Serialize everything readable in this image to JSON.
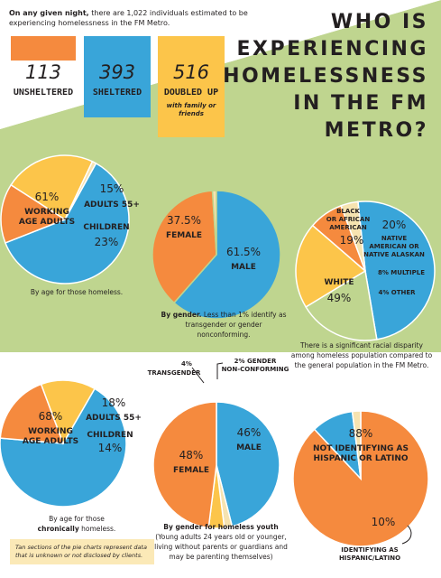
{
  "colors": {
    "orange": "#f58a3e",
    "blue": "#39a5d9",
    "yellow": "#fcc54a",
    "green": "#bfd58f",
    "tan": "#f6e3b0",
    "dark": "#231f20"
  },
  "intro": {
    "lead": "On any given night,",
    "rest": " there are 1,022 individuals estimated to be experiencing homelessness in the FM Metro."
  },
  "boxes": [
    {
      "value": "113",
      "label": "UNSHELTERED",
      "sub": ""
    },
    {
      "value": "393",
      "label": "SHELTERED",
      "sub": ""
    },
    {
      "value": "516",
      "label": "DOUBLED UP",
      "sub": "with family or friends"
    }
  ],
  "headline": [
    "WHO IS",
    "EXPERIENCING",
    "HOMELESSNESS",
    "IN THE FM",
    "METRO?"
  ],
  "captions": {
    "age": "By age for those homeless.",
    "gender_bold": "By gender.",
    "gender_rest": " Less than 1% identify as transgender or gender nonconforming.",
    "race": "There is a significant racial disparity among homeless population compared to the general population in the FM Metro.",
    "chronic_pre": "By age for those",
    "chronic_bold": "chronically",
    "chronic_post": "homeless.",
    "youth_bold": "By gender for homeless youth",
    "youth_rest": "(Young adults 24 years old or younger, living without parents or guardians and may be parenting themselves)",
    "note": "Tan sections of the pie charts represent data that is unknown or not disclosed by clients."
  },
  "chart_data": [
    {
      "type": "pie",
      "title": "",
      "caption": "By age for those homeless.",
      "slices": [
        {
          "label": "WORKING AGE ADULTS",
          "value": 61,
          "display": "61%",
          "color": "#39a5d9"
        },
        {
          "label": "ADULTS 55+",
          "value": 15,
          "display": "15%",
          "color": "#f58a3e"
        },
        {
          "label": "CHILDREN",
          "value": 23,
          "display": "23%",
          "color": "#fcc54a"
        },
        {
          "label": "",
          "value": 1,
          "display": "",
          "color": "#f6e3b0"
        }
      ]
    },
    {
      "type": "pie",
      "title": "",
      "caption": "By gender.",
      "slices": [
        {
          "label": "MALE",
          "value": 61.5,
          "display": "61.5%",
          "color": "#39a5d9"
        },
        {
          "label": "FEMALE",
          "value": 37.5,
          "display": "37.5%",
          "color": "#f58a3e"
        },
        {
          "label": "",
          "value": 1,
          "display": "",
          "color": "#f6e3b0"
        }
      ]
    },
    {
      "type": "pie",
      "title": "",
      "caption": "There is a significant racial disparity among homeless population compared to the general population in the FM Metro.",
      "slices": [
        {
          "label": "WHITE",
          "value": 49,
          "display": "49%",
          "color": "#39a5d9"
        },
        {
          "label": "BLACK OR AFRICAN AMERICAN",
          "value": 19,
          "display": "19%",
          "color": "#bfd58f"
        },
        {
          "label": "NATIVE AMERICAN OR NATIVE ALASKAN",
          "value": 20,
          "display": "20%",
          "color": "#fcc54a"
        },
        {
          "label": "MULTIPLE",
          "value": 8,
          "display": "8%",
          "color": "#f58a3e"
        },
        {
          "label": "OTHER",
          "value": 4,
          "display": "4%",
          "color": "#f6e3b0"
        }
      ]
    },
    {
      "type": "pie",
      "title": "",
      "caption": "By age for those chronically homeless.",
      "slices": [
        {
          "label": "WORKING AGE ADULTS",
          "value": 68,
          "display": "68%",
          "color": "#39a5d9"
        },
        {
          "label": "ADULTS 55+",
          "value": 18,
          "display": "18%",
          "color": "#f58a3e"
        },
        {
          "label": "CHILDREN",
          "value": 14,
          "display": "14%",
          "color": "#fcc54a"
        }
      ]
    },
    {
      "type": "pie",
      "title": "",
      "caption": "By gender for homeless youth",
      "slices": [
        {
          "label": "MALE",
          "value": 46,
          "display": "46%",
          "color": "#39a5d9"
        },
        {
          "label": "FEMALE",
          "value": 48,
          "display": "48%",
          "color": "#f58a3e"
        },
        {
          "label": "TRANSGENDER",
          "value": 4,
          "display": "4%",
          "color": "#fcc54a"
        },
        {
          "label": "GENDER NON-CONFORMING",
          "value": 2,
          "display": "2%",
          "color": "#f6e3b0"
        }
      ]
    },
    {
      "type": "pie",
      "title": "",
      "caption": "",
      "slices": [
        {
          "label": "NOT IDENTIFYING AS HISPANIC OR LATINO",
          "value": 88,
          "display": "88%",
          "color": "#f58a3e"
        },
        {
          "label": "IDENTIFYING AS HISPANIC/LATINO",
          "value": 10,
          "display": "10%",
          "color": "#39a5d9"
        },
        {
          "label": "",
          "value": 2,
          "display": "",
          "color": "#f6e3b0"
        }
      ]
    }
  ]
}
